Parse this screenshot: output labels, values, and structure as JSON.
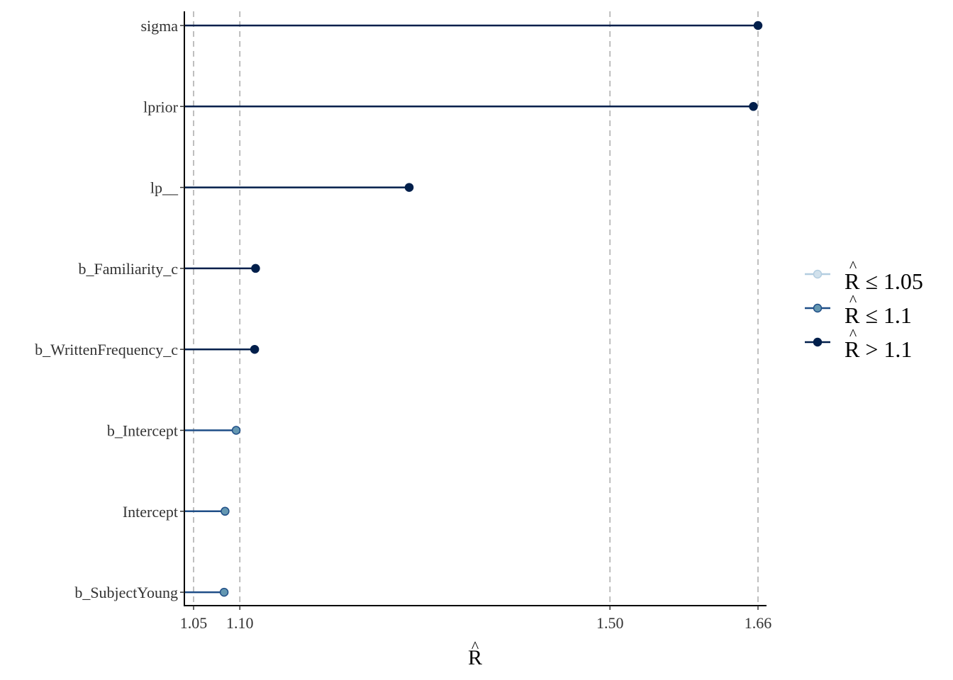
{
  "chart_data": {
    "type": "lollipop",
    "xlabel": "R",
    "xlabel_hat": "^",
    "xlim": [
      1.04,
      1.676
    ],
    "x_ticks": [
      {
        "value": 1.05,
        "label": "1.05"
      },
      {
        "value": 1.1,
        "label": "1.10"
      },
      {
        "value": 1.5,
        "label": "1.50"
      },
      {
        "value": 1.66,
        "label": "1.66"
      }
    ],
    "reference_lines": [
      1.05,
      1.1,
      1.5,
      1.66
    ],
    "grid": false,
    "legend_position": "right",
    "items": [
      {
        "label": "sigma",
        "value": 1.66,
        "group": "high"
      },
      {
        "label": "lprior",
        "value": 1.655,
        "group": "high"
      },
      {
        "label": "lp__",
        "value": 1.283,
        "group": "high"
      },
      {
        "label": "b_Familiarity_c",
        "value": 1.117,
        "group": "high"
      },
      {
        "label": "b_WrittenFrequency_c",
        "value": 1.116,
        "group": "high"
      },
      {
        "label": "b_Intercept",
        "value": 1.096,
        "group": "mid"
      },
      {
        "label": "Intercept",
        "value": 1.084,
        "group": "mid"
      },
      {
        "label": "b_SubjectYoung",
        "value": 1.083,
        "group": "mid"
      }
    ],
    "legend": [
      {
        "group": "low",
        "hat": "^",
        "text": "R ≤ 1.05",
        "line_color": "#b3cde0",
        "fill": "#d1e1ec",
        "stroke": "#b3cde0"
      },
      {
        "group": "mid",
        "hat": "^",
        "text": "R ≤ 1.1",
        "line_color": "#1f4e87",
        "fill": "#6497b1",
        "stroke": "#1f4e87"
      },
      {
        "group": "high",
        "hat": "^",
        "text": "R > 1.1",
        "line_color": "#011f4b",
        "fill": "#011f4b",
        "stroke": "#011f4b"
      }
    ],
    "colors": {
      "axis": "#000000",
      "ref_line": "#aaaaaa"
    }
  }
}
